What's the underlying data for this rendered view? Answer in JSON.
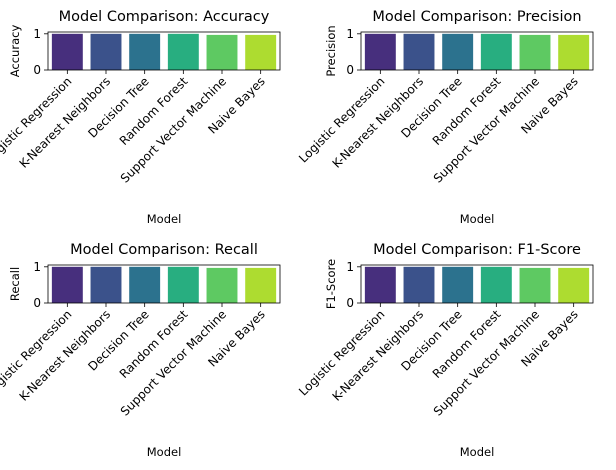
{
  "chart_data": [
    {
      "type": "bar",
      "title": "Model Comparison: Accuracy",
      "xlabel": "Model",
      "ylabel": "Accuracy",
      "ylim": [
        0,
        1.05
      ],
      "yticks": [
        {
          "value": 0,
          "label": "0"
        },
        {
          "value": 1,
          "label": "1"
        }
      ],
      "categories": [
        "Logistic Regression",
        "K-Nearest Neighbors",
        "Decision Tree",
        "Random Forest",
        "Support Vector Machine",
        "Naive Bayes"
      ],
      "values": [
        1.0,
        1.0,
        1.0,
        1.0,
        0.97,
        0.97
      ],
      "colors": [
        "#472f7d",
        "#3b528b",
        "#2c728e",
        "#28ae80",
        "#5ec962",
        "#addc30"
      ]
    },
    {
      "type": "bar",
      "title": "Model Comparison: Precision",
      "xlabel": "Model",
      "ylabel": "Precision",
      "ylim": [
        0,
        1.05
      ],
      "yticks": [
        {
          "value": 0,
          "label": "0"
        },
        {
          "value": 1,
          "label": "1"
        }
      ],
      "categories": [
        "Logistic Regression",
        "K-Nearest Neighbors",
        "Decision Tree",
        "Random Forest",
        "Support Vector Machine",
        "Naive Bayes"
      ],
      "values": [
        1.0,
        1.0,
        1.0,
        1.0,
        0.97,
        0.97
      ],
      "colors": [
        "#472f7d",
        "#3b528b",
        "#2c728e",
        "#28ae80",
        "#5ec962",
        "#addc30"
      ]
    },
    {
      "type": "bar",
      "title": "Model Comparison: Recall",
      "xlabel": "Model",
      "ylabel": "Recall",
      "ylim": [
        0,
        1.05
      ],
      "yticks": [
        {
          "value": 0,
          "label": "0"
        },
        {
          "value": 1,
          "label": "1"
        }
      ],
      "categories": [
        "Logistic Regression",
        "K-Nearest Neighbors",
        "Decision Tree",
        "Random Forest",
        "Support Vector Machine",
        "Naive Bayes"
      ],
      "values": [
        1.0,
        1.0,
        1.0,
        1.0,
        0.97,
        0.97
      ],
      "colors": [
        "#472f7d",
        "#3b528b",
        "#2c728e",
        "#28ae80",
        "#5ec962",
        "#addc30"
      ]
    },
    {
      "type": "bar",
      "title": "Model Comparison: F1-Score",
      "xlabel": "Model",
      "ylabel": "F1-Score",
      "ylim": [
        0,
        1.05
      ],
      "yticks": [
        {
          "value": 0,
          "label": "0"
        },
        {
          "value": 1,
          "label": "1"
        }
      ],
      "categories": [
        "Logistic Regression",
        "K-Nearest Neighbors",
        "Decision Tree",
        "Random Forest",
        "Support Vector Machine",
        "Naive Bayes"
      ],
      "values": [
        1.0,
        1.0,
        1.0,
        1.0,
        0.97,
        0.97
      ],
      "colors": [
        "#472f7d",
        "#3b528b",
        "#2c728e",
        "#28ae80",
        "#5ec962",
        "#addc30"
      ]
    }
  ]
}
